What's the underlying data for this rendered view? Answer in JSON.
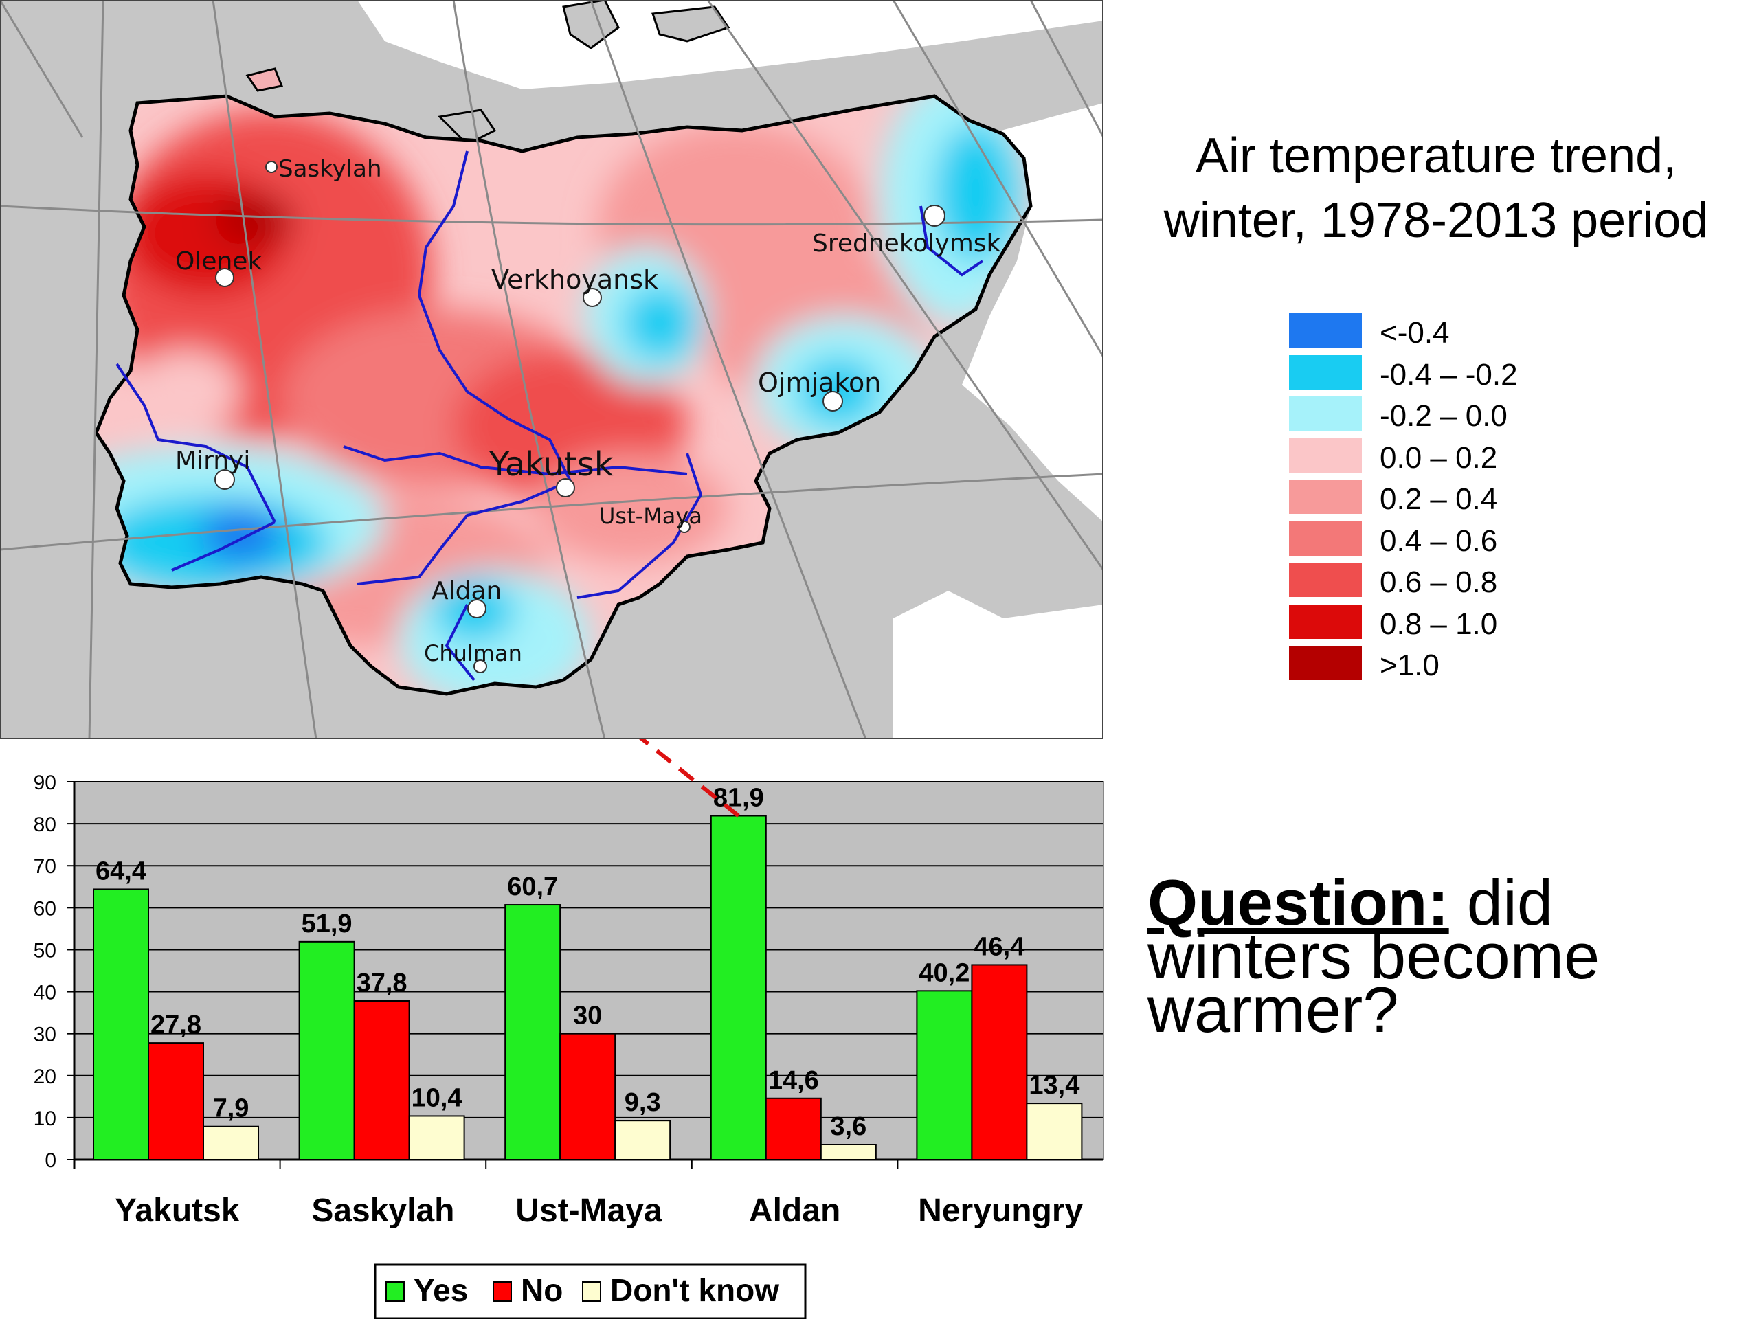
{
  "map": {
    "cities": [
      {
        "id": "saskylah",
        "name": "Saskylah"
      },
      {
        "id": "olenek",
        "name": "Olenek"
      },
      {
        "id": "verkhoyansk",
        "name": "Verkhoyansk"
      },
      {
        "id": "srednekolymsk",
        "name": "Srednekolymsk"
      },
      {
        "id": "ojmjakon",
        "name": "Ojmjakon"
      },
      {
        "id": "mirnyi",
        "name": "Mirnyi"
      },
      {
        "id": "yakutsk",
        "name": "Yakutsk"
      },
      {
        "id": "ust-maya",
        "name": "Ust-Maya"
      },
      {
        "id": "aldan",
        "name": "Aldan"
      },
      {
        "id": "chulman",
        "name": "Chulman"
      }
    ]
  },
  "legend": {
    "title_line1": "Air temperature trend,",
    "title_line2": "winter, 1978-2013 period",
    "items": [
      {
        "label": "<-0.4",
        "color": "#1e78f0"
      },
      {
        "label": "-0.4 – -0.2",
        "color": "#19ccf2"
      },
      {
        "label": "-0.2 – 0.0",
        "color": "#a6f2fa"
      },
      {
        "label": "0.0 – 0.2",
        "color": "#fbc6c8"
      },
      {
        "label": "0.2 – 0.4",
        "color": "#f79a9a"
      },
      {
        "label": "0.4 – 0.6",
        "color": "#f37878"
      },
      {
        "label": "0.6 – 0.8",
        "color": "#ef4e4e"
      },
      {
        "label": "0.8 – 1.0",
        "color": "#dc0a0a"
      },
      {
        "label": ">1.0",
        "color": "#b40000"
      }
    ]
  },
  "question": {
    "heading": "Question:",
    "text": " did winters become warmer?"
  },
  "chart_data": {
    "type": "bar",
    "categories": [
      "Yakutsk",
      "Saskylah",
      "Ust-Maya",
      "Aldan",
      "Neryungry"
    ],
    "series": [
      {
        "name": "Yes",
        "values": [
          64.4,
          51.9,
          60.7,
          81.9,
          40.2
        ],
        "labels": [
          "64,4",
          "51,9",
          "60,7",
          "81,9",
          "40,2"
        ],
        "color": "#22ee22"
      },
      {
        "name": "No",
        "values": [
          27.8,
          37.8,
          30,
          14.6,
          46.4
        ],
        "labels": [
          "27,8",
          "37,8",
          "30",
          "14,6",
          "46,4"
        ],
        "color": "#ff0000"
      },
      {
        "name": "Don't know",
        "values": [
          7.9,
          10.4,
          9.3,
          3.6,
          13.4
        ],
        "labels": [
          "7,9",
          "10,4",
          "9,3",
          "3,6",
          "13,4"
        ],
        "color": "#fefdd0"
      }
    ],
    "ylim": [
      0,
      90
    ],
    "yticks": [
      0,
      10,
      20,
      30,
      40,
      50,
      60,
      70,
      80,
      90
    ],
    "grid": true,
    "plot_background": "#c0c0c0",
    "legend_position": "bottom"
  }
}
